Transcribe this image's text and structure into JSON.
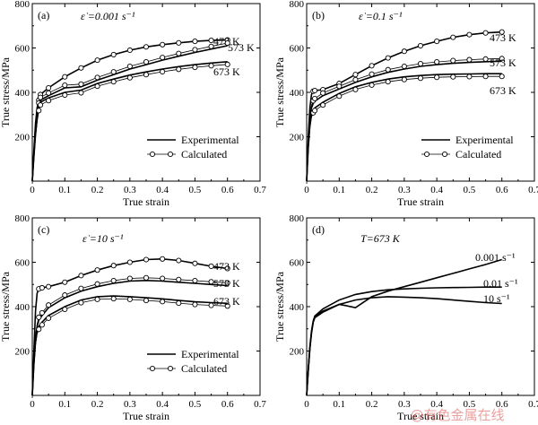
{
  "chart_data": [
    {
      "type": "line",
      "panel_label": "(a)",
      "annotation": "ε̇ =0.001 s⁻¹",
      "xlabel": "True strain",
      "ylabel": "True stress/MPa",
      "xlim": [
        0,
        0.7
      ],
      "ylim": [
        0,
        800
      ],
      "xticks": [
        "0",
        "0.1",
        "0.2",
        "0.3",
        "0.4",
        "0.5",
        "0.6",
        "0.7"
      ],
      "yticks": [
        "200",
        "400",
        "600",
        "800"
      ],
      "legend": [
        "Experimental",
        "Calculated"
      ],
      "legend_position": "bottom-right",
      "series": [
        {
          "name": "473 K",
          "x": [
            0,
            0.005,
            0.01,
            0.015,
            0.02,
            0.025,
            0.05,
            0.1,
            0.15,
            0.2,
            0.25,
            0.3,
            0.35,
            0.4,
            0.45,
            0.5,
            0.55,
            0.6
          ],
          "y": [
            0,
            140,
            260,
            330,
            365,
            390,
            420,
            470,
            510,
            545,
            570,
            590,
            605,
            615,
            623,
            630,
            634,
            636
          ]
        },
        {
          "name": "573 K",
          "x": [
            0,
            0.005,
            0.01,
            0.015,
            0.02,
            0.025,
            0.05,
            0.1,
            0.15,
            0.2,
            0.25,
            0.3,
            0.35,
            0.4,
            0.45,
            0.5,
            0.55,
            0.6
          ],
          "y": [
            0,
            120,
            230,
            300,
            340,
            365,
            385,
            420,
            425,
            455,
            480,
            505,
            525,
            545,
            563,
            580,
            595,
            610
          ]
        },
        {
          "name": "673 K",
          "x": [
            0,
            0.005,
            0.01,
            0.015,
            0.02,
            0.025,
            0.05,
            0.1,
            0.15,
            0.2,
            0.25,
            0.3,
            0.35,
            0.4,
            0.45,
            0.5,
            0.55,
            0.6
          ],
          "y": [
            0,
            110,
            210,
            280,
            330,
            355,
            375,
            400,
            410,
            440,
            460,
            478,
            492,
            505,
            516,
            525,
            532,
            538
          ]
        }
      ]
    },
    {
      "type": "line",
      "panel_label": "(b)",
      "annotation": "ε̇ =0.1 s⁻¹",
      "xlabel": "True strain",
      "ylabel": "True stress/MPa",
      "xlim": [
        0,
        0.7
      ],
      "ylim": [
        0,
        800
      ],
      "xticks": [
        "0",
        "0.1",
        "0.2",
        "0.3",
        "0.4",
        "0.5",
        "0.6",
        "0.7"
      ],
      "yticks": [
        "200",
        "400",
        "600",
        "800"
      ],
      "legend": [
        "Experimental",
        "Calculated"
      ],
      "legend_position": "bottom-right",
      "series": [
        {
          "name": "473 K",
          "x": [
            0,
            0.005,
            0.01,
            0.015,
            0.02,
            0.025,
            0.05,
            0.1,
            0.15,
            0.2,
            0.25,
            0.3,
            0.35,
            0.4,
            0.45,
            0.5,
            0.55,
            0.6
          ],
          "y": [
            0,
            200,
            330,
            390,
            405,
            408,
            412,
            440,
            480,
            520,
            555,
            585,
            610,
            630,
            648,
            660,
            668,
            672
          ]
        },
        {
          "name": "573 K",
          "x": [
            0,
            0.005,
            0.01,
            0.015,
            0.02,
            0.025,
            0.05,
            0.1,
            0.15,
            0.2,
            0.25,
            0.3,
            0.35,
            0.4,
            0.45,
            0.5,
            0.55,
            0.6
          ],
          "y": [
            0,
            170,
            280,
            330,
            350,
            360,
            385,
            415,
            445,
            470,
            490,
            505,
            517,
            525,
            531,
            535,
            538,
            540
          ]
        },
        {
          "name": "673 K",
          "x": [
            0,
            0.005,
            0.01,
            0.015,
            0.02,
            0.025,
            0.05,
            0.1,
            0.15,
            0.2,
            0.25,
            0.3,
            0.35,
            0.4,
            0.45,
            0.5,
            0.55,
            0.6
          ],
          "y": [
            0,
            150,
            250,
            300,
            320,
            330,
            355,
            395,
            425,
            445,
            460,
            470,
            476,
            480,
            482,
            483,
            484,
            484
          ]
        }
      ]
    },
    {
      "type": "line",
      "panel_label": "(c)",
      "annotation": "ε̇ =10 s⁻¹",
      "xlabel": "True strain",
      "ylabel": "True stress/MPa",
      "xlim": [
        0,
        0.7
      ],
      "ylim": [
        0,
        800
      ],
      "xticks": [
        "0",
        "0.1",
        "0.2",
        "0.3",
        "0.4",
        "0.5",
        "0.6",
        "0.7"
      ],
      "yticks": [
        "200",
        "400",
        "600",
        "800"
      ],
      "legend": [
        "Experimental",
        "Calculated"
      ],
      "legend_position": "bottom-right",
      "series": [
        {
          "name": "473 K",
          "x": [
            0,
            0.005,
            0.01,
            0.015,
            0.02,
            0.03,
            0.05,
            0.1,
            0.15,
            0.2,
            0.25,
            0.3,
            0.35,
            0.4,
            0.45,
            0.5,
            0.55,
            0.6
          ],
          "y": [
            0,
            200,
            380,
            460,
            480,
            485,
            490,
            510,
            540,
            565,
            585,
            600,
            612,
            615,
            608,
            595,
            582,
            572
          ]
        },
        {
          "name": "573 K",
          "x": [
            0,
            0.005,
            0.01,
            0.015,
            0.02,
            0.03,
            0.05,
            0.1,
            0.15,
            0.2,
            0.25,
            0.3,
            0.35,
            0.4,
            0.45,
            0.5,
            0.55,
            0.6
          ],
          "y": [
            0,
            150,
            260,
            310,
            340,
            360,
            395,
            440,
            470,
            490,
            505,
            515,
            518,
            515,
            510,
            505,
            500,
            495
          ]
        },
        {
          "name": "673 K",
          "x": [
            0,
            0.005,
            0.01,
            0.015,
            0.02,
            0.03,
            0.05,
            0.1,
            0.15,
            0.2,
            0.25,
            0.3,
            0.35,
            0.4,
            0.45,
            0.5,
            0.55,
            0.6
          ],
          "y": [
            0,
            140,
            240,
            290,
            310,
            330,
            360,
            400,
            430,
            445,
            448,
            445,
            440,
            435,
            428,
            422,
            418,
            415
          ]
        }
      ]
    },
    {
      "type": "line",
      "panel_label": "(d)",
      "annotation": "T=673 K",
      "xlabel": "True strain",
      "ylabel": "True stress/MPa",
      "xlim": [
        0,
        0.7
      ],
      "ylim": [
        0,
        800
      ],
      "xticks": [
        "0",
        "0.1",
        "0.2",
        "0.3",
        "0.4",
        "0.5",
        "0.6",
        "0.7"
      ],
      "yticks": [
        "200",
        "400",
        "600",
        "800"
      ],
      "series": [
        {
          "name": "0.001 s⁻¹",
          "x": [
            0,
            0.005,
            0.01,
            0.015,
            0.02,
            0.025,
            0.05,
            0.1,
            0.12,
            0.15,
            0.2,
            0.25,
            0.3,
            0.35,
            0.4,
            0.45,
            0.5,
            0.55,
            0.6
          ],
          "y": [
            0,
            110,
            210,
            280,
            330,
            355,
            380,
            410,
            405,
            395,
            445,
            470,
            490,
            510,
            530,
            550,
            570,
            590,
            612
          ]
        },
        {
          "name": "0.01 s⁻¹",
          "x": [
            0,
            0.005,
            0.01,
            0.015,
            0.02,
            0.025,
            0.05,
            0.1,
            0.15,
            0.2,
            0.25,
            0.3,
            0.35,
            0.4,
            0.45,
            0.5,
            0.55,
            0.6
          ],
          "y": [
            0,
            120,
            220,
            290,
            335,
            358,
            390,
            430,
            455,
            468,
            476,
            480,
            483,
            485,
            486,
            487,
            488,
            488
          ]
        },
        {
          "name": "10 s⁻¹",
          "x": [
            0,
            0.005,
            0.01,
            0.015,
            0.02,
            0.025,
            0.05,
            0.1,
            0.15,
            0.2,
            0.25,
            0.3,
            0.35,
            0.4,
            0.45,
            0.5,
            0.55,
            0.6
          ],
          "y": [
            0,
            115,
            215,
            285,
            330,
            350,
            375,
            410,
            430,
            440,
            445,
            443,
            440,
            436,
            430,
            424,
            418,
            414
          ]
        }
      ]
    }
  ],
  "watermark": "@有色金属在线"
}
